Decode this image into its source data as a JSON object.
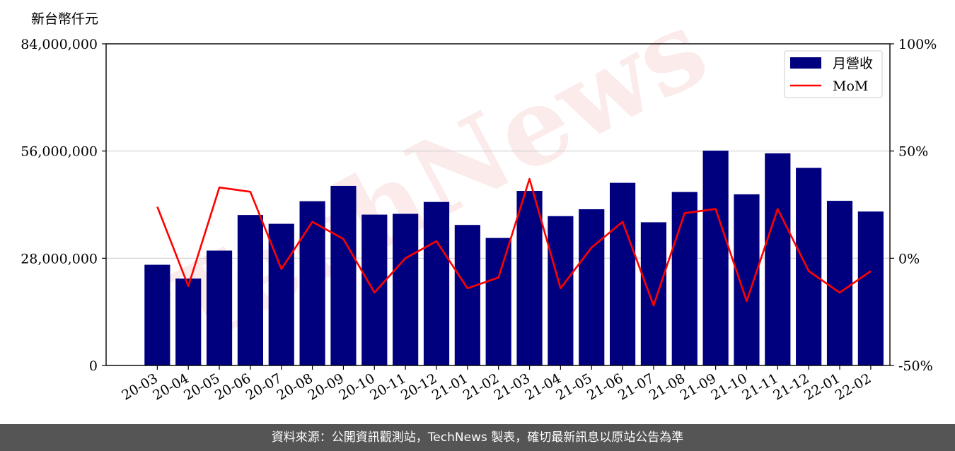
{
  "chart_data": {
    "type": "bar",
    "ylabel": "新台幣仟元",
    "categories": [
      "20-03",
      "20-04",
      "20-05",
      "20-06",
      "20-07",
      "20-08",
      "20-09",
      "20-10",
      "20-11",
      "20-12",
      "21-01",
      "21-02",
      "21-03",
      "21-04",
      "21-05",
      "21-06",
      "21-07",
      "21-08",
      "21-09",
      "21-10",
      "21-11",
      "21-12",
      "22-01",
      "22-02"
    ],
    "series": [
      {
        "name": "月營收",
        "type": "bar",
        "axis": "left",
        "color": "#00007f",
        "values": [
          26300000,
          22700000,
          30000000,
          39300000,
          37000000,
          42900000,
          46900000,
          39400000,
          39600000,
          42700000,
          36700000,
          33300000,
          45600000,
          39000000,
          40800000,
          47700000,
          37400000,
          45300000,
          56100000,
          44700000,
          55400000,
          51600000,
          43000000,
          40200000
        ]
      },
      {
        "name": "MoM",
        "type": "line",
        "axis": "right",
        "color": "#ff0000",
        "values": [
          24,
          -13,
          33,
          31,
          -5,
          17,
          9,
          -16,
          0,
          8,
          -14,
          -9,
          37,
          -14,
          5,
          17,
          -22,
          21,
          23,
          -20,
          23,
          -6,
          -16,
          -6
        ]
      }
    ],
    "ylim": [
      0,
      84000000
    ],
    "yticks": [
      "0",
      "28,000,000",
      "56,000,000",
      "84,000,000"
    ],
    "y2lim": [
      -50,
      100
    ],
    "y2ticks": [
      "-50%",
      "0%",
      "50%",
      "100%"
    ],
    "grid": "horizontal",
    "legend": "top-right",
    "watermark": "TechNews"
  },
  "footer": {
    "source_text": "資料來源：公開資訊觀測站，TechNews 製表，確切最新訊息以原站公告為準"
  }
}
